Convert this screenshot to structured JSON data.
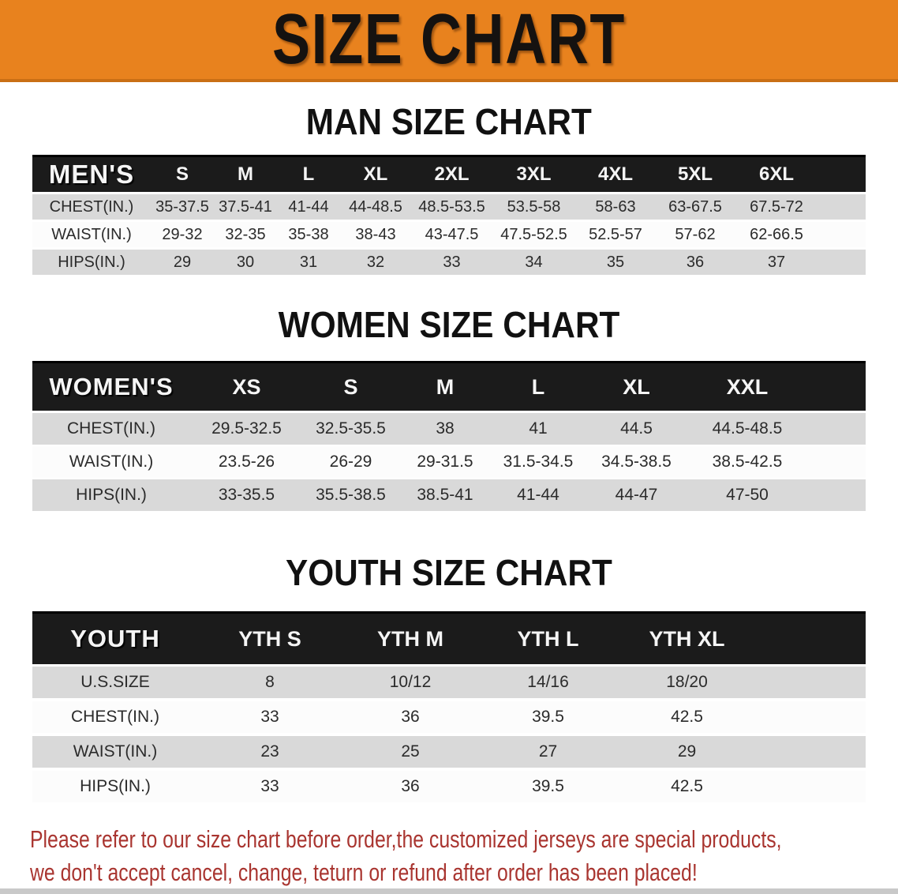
{
  "banner": {
    "title": "SIZE CHART",
    "bg_color": "#E8821E",
    "text_color": "#151210"
  },
  "sections": [
    {
      "title": "MAN SIZE CHART",
      "header_label": "MEN'S",
      "columns": [
        "S",
        "M",
        "L",
        "XL",
        "2XL",
        "3XL",
        "4XL",
        "5XL",
        "6XL"
      ],
      "rows": [
        {
          "label": "CHEST(IN.)",
          "values": [
            "35-37.5",
            "37.5-41",
            "41-44",
            "44-48.5",
            "48.5-53.5",
            "53.5-58",
            "58-63",
            "63-67.5",
            "67.5-72"
          ]
        },
        {
          "label": "WAIST(IN.)",
          "values": [
            "29-32",
            "32-35",
            "35-38",
            "38-43",
            "43-47.5",
            "47.5-52.5",
            "52.5-57",
            "57-62",
            "62-66.5"
          ]
        },
        {
          "label": "HIPS(IN.)",
          "values": [
            "29",
            "30",
            "31",
            "32",
            "33",
            "34",
            "35",
            "36",
            "37"
          ]
        }
      ]
    },
    {
      "title": "WOMEN SIZE CHART",
      "header_label": "WOMEN'S",
      "columns": [
        "XS",
        "S",
        "M",
        "L",
        "XL",
        "XXL"
      ],
      "rows": [
        {
          "label": "CHEST(IN.)",
          "values": [
            "29.5-32.5",
            "32.5-35.5",
            "38",
            "41",
            "44.5",
            "44.5-48.5"
          ]
        },
        {
          "label": "WAIST(IN.)",
          "values": [
            "23.5-26",
            "26-29",
            "29-31.5",
            "31.5-34.5",
            "34.5-38.5",
            "38.5-42.5"
          ]
        },
        {
          "label": "HIPS(IN.)",
          "values": [
            "33-35.5",
            "35.5-38.5",
            "38.5-41",
            "41-44",
            "44-47",
            "47-50"
          ]
        }
      ]
    },
    {
      "title": "YOUTH SIZE CHART",
      "header_label": "YOUTH",
      "columns": [
        "YTH S",
        "YTH M",
        "YTH L",
        "YTH XL"
      ],
      "rows": [
        {
          "label": "U.S.SIZE",
          "values": [
            "8",
            "10/12",
            "14/16",
            "18/20"
          ]
        },
        {
          "label": "CHEST(IN.)",
          "values": [
            "33",
            "36",
            "39.5",
            "42.5"
          ]
        },
        {
          "label": "WAIST(IN.)",
          "values": [
            "23",
            "25",
            "27",
            "29"
          ]
        },
        {
          "label": "HIPS(IN.)",
          "values": [
            "33",
            "36",
            "39.5",
            "42.5"
          ]
        }
      ]
    }
  ],
  "disclaimer": {
    "line1": "Please refer to our size chart before order,the customized jerseys are special products,",
    "line2": "we don't accept cancel, change, teturn or refund after order has been placed!",
    "color": "#A93530"
  },
  "colors": {
    "banner_orange": "#E8821E",
    "banner_border": "#C96F15",
    "header_black": "#1B1B1B",
    "row_gray": "#D9D9D9",
    "row_white": "#FCFCFC",
    "disclaimer_red": "#A93530"
  }
}
